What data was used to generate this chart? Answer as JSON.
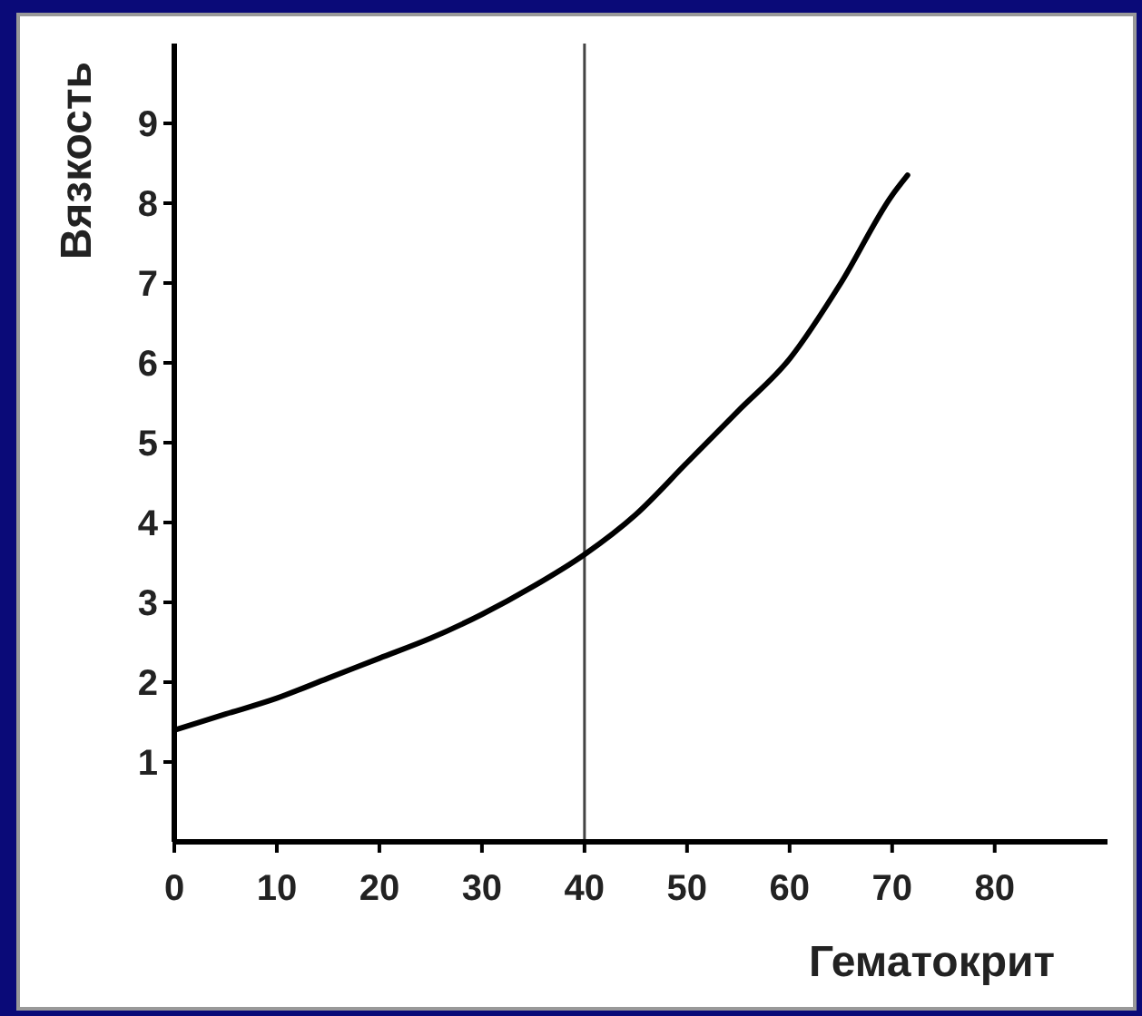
{
  "chart_data": {
    "type": "line",
    "xlabel": "Гематокрит",
    "ylabel": "Вязкость",
    "x": [
      0,
      5,
      10,
      15,
      20,
      25,
      30,
      35,
      40,
      45,
      50,
      55,
      60,
      65,
      70,
      71.5
    ],
    "series": [
      {
        "color": "#000000",
        "values": [
          1.4,
          1.6,
          1.8,
          2.05,
          2.3,
          2.55,
          2.85,
          3.2,
          3.6,
          4.1,
          4.75,
          5.4,
          6.05,
          7.0,
          8.1,
          8.35
        ]
      }
    ],
    "xlim": [
      0,
      91
    ],
    "xticks": [
      0,
      10,
      20,
      30,
      40,
      50,
      60,
      70,
      80
    ],
    "ylim": [
      0,
      10
    ],
    "yticks": [
      1,
      2,
      3,
      4,
      5,
      6,
      7,
      8,
      9
    ],
    "ref_lines": [
      {
        "axis": "x",
        "value": 40,
        "color": "#444444"
      }
    ],
    "grid": false,
    "marker": "none",
    "line_style": "solid"
  }
}
